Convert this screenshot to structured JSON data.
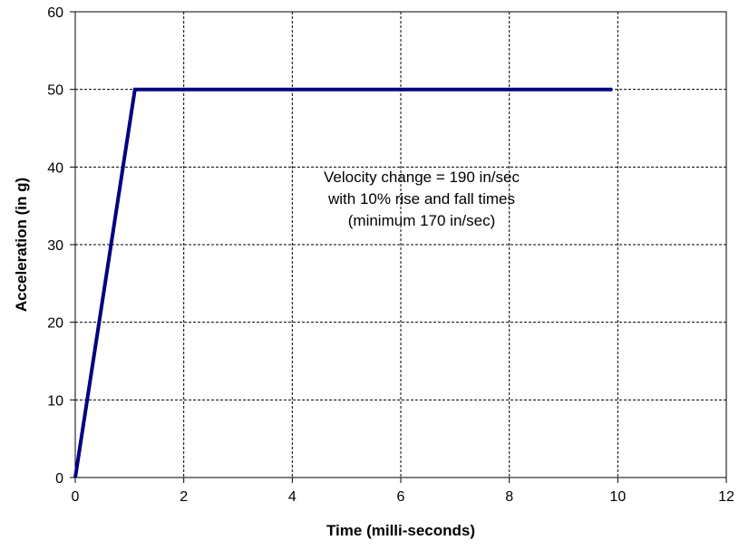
{
  "chart_data": {
    "type": "line",
    "xlabel": "Time (milli-seconds)",
    "ylabel": "Acceleration (in g)",
    "xlim": [
      0,
      12
    ],
    "ylim": [
      0,
      60
    ],
    "x_ticks": [
      0,
      2,
      4,
      6,
      8,
      10,
      12
    ],
    "y_ticks": [
      0,
      10,
      20,
      30,
      40,
      50,
      60
    ],
    "grid": true,
    "series": [
      {
        "color": "#000080",
        "x": [
          0,
          1.1,
          9.9
        ],
        "y": [
          0,
          50,
          50
        ]
      }
    ],
    "annotation": [
      "Velocity change = 190 in/sec",
      "with 10% rise and fall times",
      "(minimum 170 in/sec)"
    ]
  }
}
